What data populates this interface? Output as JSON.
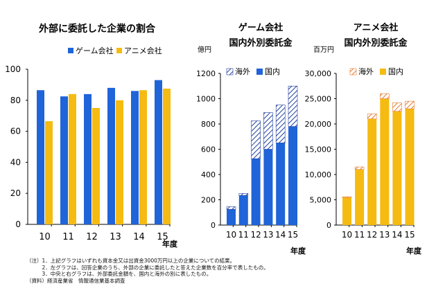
{
  "colors": {
    "blue": "#1f64d8",
    "yellow": "#f5bb13",
    "hatch_blue": "#1f3f9e",
    "hatch_orange": "#e8782a",
    "axis": "#000000"
  },
  "chart_data": [
    {
      "id": "share",
      "type": "bar",
      "title": "外部に委託した企業の割合",
      "categories": [
        "10",
        "11",
        "12",
        "13",
        "14",
        "15"
      ],
      "series": [
        {
          "name": "ゲーム会社",
          "values": [
            86.5,
            82.5,
            84.0,
            88.0,
            86.0,
            93.0
          ]
        },
        {
          "name": "アニメ会社",
          "values": [
            66.5,
            84.0,
            75.0,
            80.0,
            86.5,
            87.5
          ]
        }
      ],
      "ylim": [
        0,
        100
      ],
      "yticks": [
        "0",
        "20",
        "40",
        "60",
        "80",
        "100"
      ],
      "xlabel": "年度",
      "ylabel": ""
    },
    {
      "id": "game",
      "type": "bar",
      "stacked": true,
      "title": "ゲーム会社",
      "subtitle": "国内外別委託金",
      "unit": "億円",
      "categories": [
        "10",
        "11",
        "12",
        "13",
        "14",
        "15"
      ],
      "series": [
        {
          "name": "国内",
          "values": [
            125,
            235,
            525,
            600,
            650,
            780
          ]
        },
        {
          "name": "海外",
          "values": [
            20,
            15,
            300,
            290,
            300,
            320
          ]
        }
      ],
      "ylim": [
        0,
        1200
      ],
      "yticks": [
        "0",
        "200",
        "400",
        "600",
        "800",
        "1000",
        "1200"
      ],
      "xlabel": "年度"
    },
    {
      "id": "anime",
      "type": "bar",
      "stacked": true,
      "title": "アニメ会社",
      "subtitle": "国内外別委託金",
      "unit": "百万円",
      "categories": [
        "10",
        "11",
        "12",
        "13",
        "14",
        "15"
      ],
      "series": [
        {
          "name": "国内",
          "values": [
            5500,
            11000,
            21000,
            25000,
            22500,
            23000
          ]
        },
        {
          "name": "海外",
          "values": [
            100,
            500,
            1000,
            1000,
            1700,
            1500
          ]
        }
      ],
      "ylim": [
        0,
        30000
      ],
      "yticks": [
        "0",
        "5,000",
        "10,000",
        "15,000",
        "20,000",
        "25,000",
        "30,000"
      ],
      "xlabel": "年度"
    }
  ],
  "notes": [
    "（注）1．上記グラフはいずれも資本金又は出資金3000万円以上の企業についての結果。",
    "　　　2．左グラフは、回答企業のうち、外部の企業に委託したと答えた企業数を百分率で表したもの。",
    "　　　3．中央と右グラフは、外部委託金額を、国内と海外の別に表したもの。",
    "（資料）経済産業省　情報通信業基本調査"
  ]
}
